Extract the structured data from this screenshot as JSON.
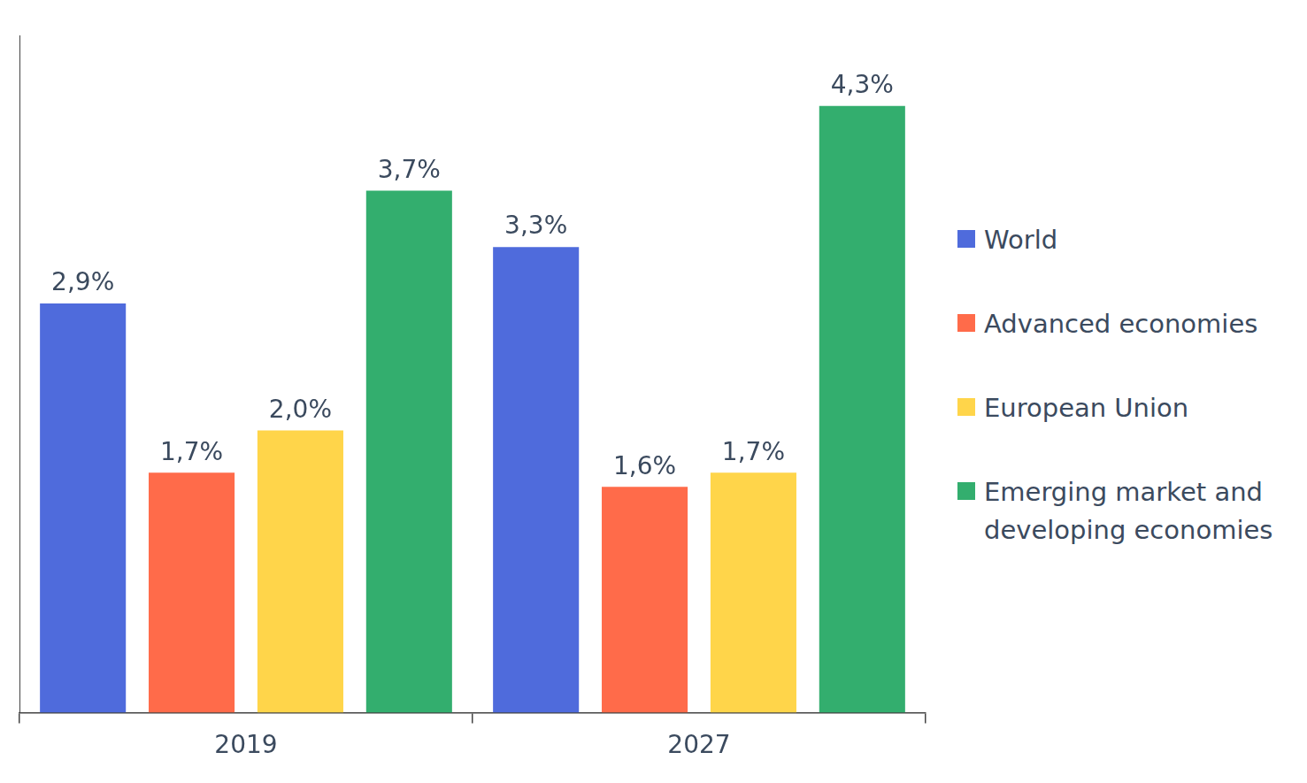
{
  "chart_data": {
    "type": "bar",
    "categories": [
      "2019",
      "2027"
    ],
    "series": [
      {
        "name": "World",
        "color": "#4f6bdc",
        "values": [
          2.9,
          3.3
        ],
        "value_labels": [
          "2,9%",
          "3,3%"
        ]
      },
      {
        "name": "Advanced economies",
        "color": "#ff6b4a",
        "values": [
          1.7,
          1.6
        ],
        "value_labels": [
          "1,7%",
          "1,6%"
        ]
      },
      {
        "name": "European Union",
        "color": "#ffd54a",
        "values": [
          2.0,
          1.7
        ],
        "value_labels": [
          "2,0%",
          "1,7%"
        ]
      },
      {
        "name": "Emerging market and developing economies",
        "color": "#33ae6e",
        "values": [
          3.7,
          4.3
        ],
        "value_labels": [
          "3,7%",
          "4,3%"
        ]
      }
    ],
    "ylim": [
      0,
      4.8
    ],
    "yticks": [],
    "grid": false,
    "legend": "right",
    "data_labels": true,
    "tick_labels": "x"
  }
}
